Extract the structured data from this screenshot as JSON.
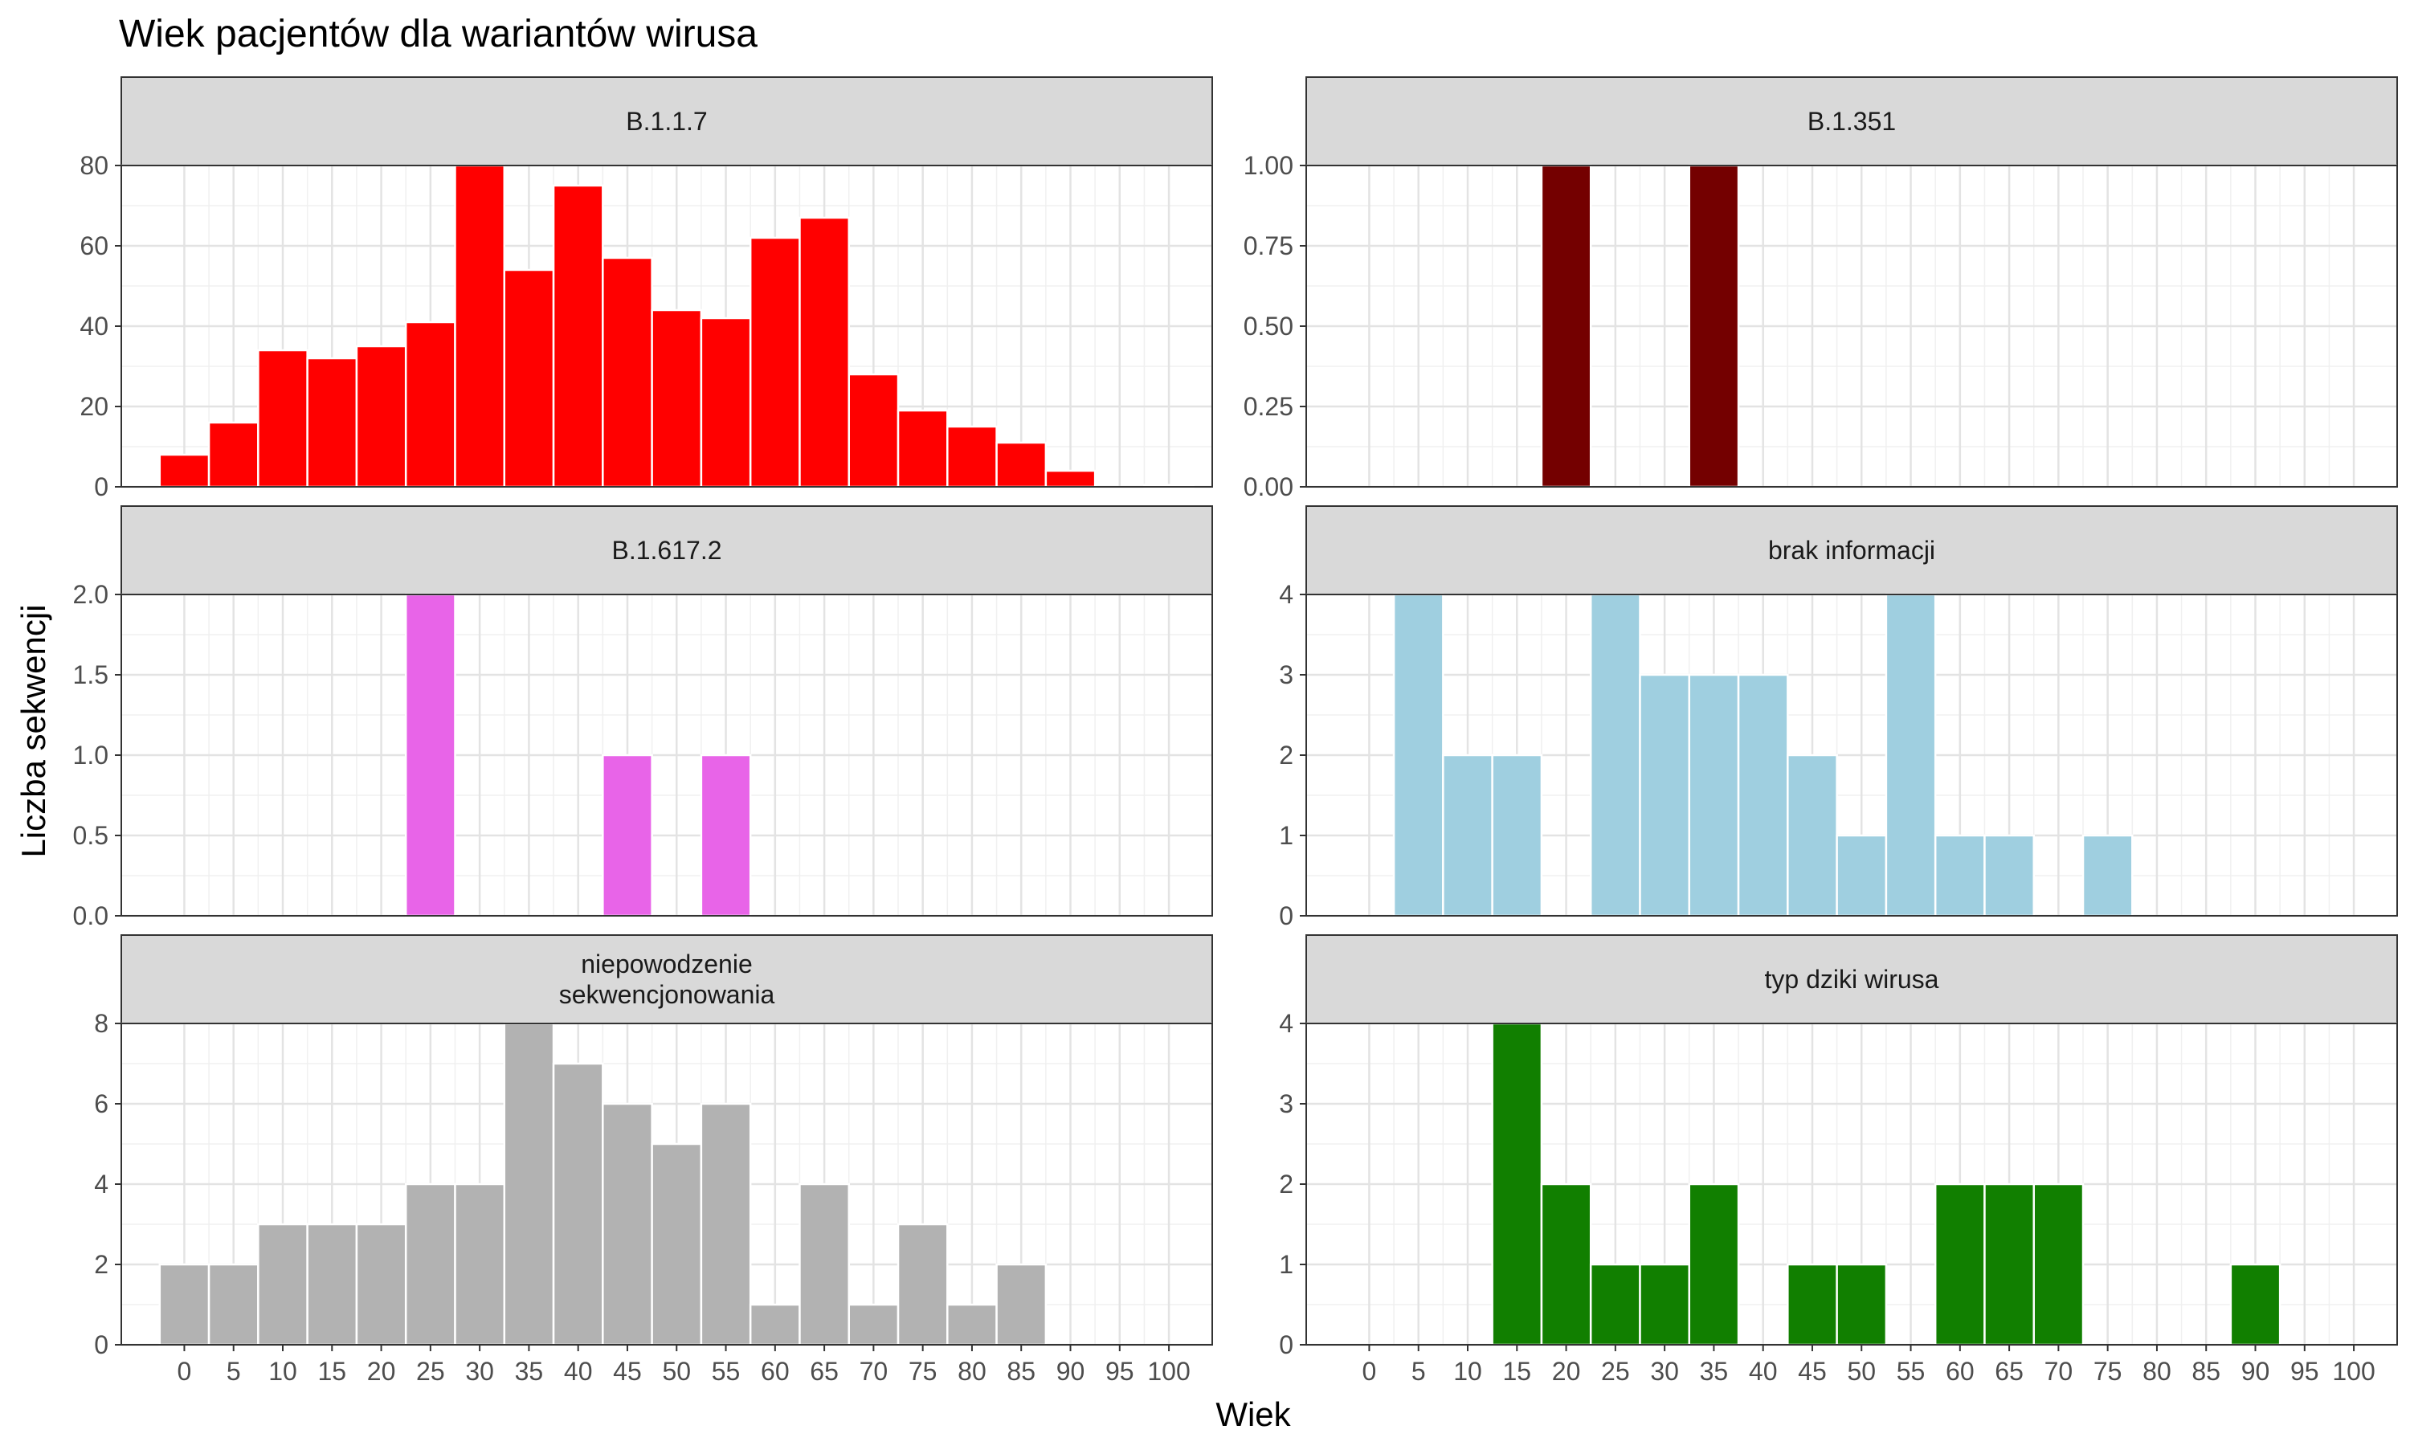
{
  "chart_data": {
    "type": "bar",
    "title": "Wiek pacjentów dla wariantów wirusa",
    "xlabel": "Wiek",
    "ylabel": "Liczba sekwencji",
    "x_ticks": [
      "0",
      "5",
      "10",
      "15",
      "20",
      "25",
      "30",
      "35",
      "40",
      "45",
      "50",
      "55",
      "60",
      "65",
      "70",
      "75",
      "80",
      "85",
      "90",
      "95",
      "100"
    ],
    "bin_width": 5,
    "grid": true,
    "legend": "none",
    "panels": [
      {
        "name": "B.1.1.7",
        "strip_lines": [
          "B.1.1.7"
        ],
        "color": "#ff0000",
        "ylim": [
          0,
          80
        ],
        "y_ticks": [
          "0",
          "20",
          "40",
          "60",
          "80"
        ],
        "bins": [
          {
            "x": 0,
            "value": 8
          },
          {
            "x": 5,
            "value": 16
          },
          {
            "x": 10,
            "value": 34
          },
          {
            "x": 15,
            "value": 32
          },
          {
            "x": 20,
            "value": 35
          },
          {
            "x": 25,
            "value": 41
          },
          {
            "x": 30,
            "value": 80
          },
          {
            "x": 35,
            "value": 54
          },
          {
            "x": 40,
            "value": 75
          },
          {
            "x": 45,
            "value": 57
          },
          {
            "x": 50,
            "value": 44
          },
          {
            "x": 55,
            "value": 42
          },
          {
            "x": 60,
            "value": 62
          },
          {
            "x": 65,
            "value": 67
          },
          {
            "x": 70,
            "value": 28
          },
          {
            "x": 75,
            "value": 19
          },
          {
            "x": 80,
            "value": 15
          },
          {
            "x": 85,
            "value": 11
          },
          {
            "x": 90,
            "value": 4
          },
          {
            "x": 95,
            "value": 0
          },
          {
            "x": 100,
            "value": 0.5
          }
        ]
      },
      {
        "name": "B.1.351",
        "strip_lines": [
          "B.1.351"
        ],
        "color": "#740000",
        "ylim": [
          0,
          1
        ],
        "y_ticks": [
          "0.00",
          "0.25",
          "0.50",
          "0.75",
          "1.00"
        ],
        "bins": [
          {
            "x": 20,
            "value": 1
          },
          {
            "x": 35,
            "value": 1
          }
        ]
      },
      {
        "name": "B.1.617.2",
        "strip_lines": [
          "B.1.617.2"
        ],
        "color": "#e864e8",
        "ylim": [
          0,
          2
        ],
        "y_ticks": [
          "0.0",
          "0.5",
          "1.0",
          "1.5",
          "2.0"
        ],
        "bins": [
          {
            "x": 25,
            "value": 2
          },
          {
            "x": 45,
            "value": 1
          },
          {
            "x": 55,
            "value": 1
          }
        ]
      },
      {
        "name": "brak informacji",
        "strip_lines": [
          "brak informacji"
        ],
        "color": "#9fcfe0",
        "ylim": [
          0,
          4
        ],
        "y_ticks": [
          "0",
          "1",
          "2",
          "3",
          "4"
        ],
        "bins": [
          {
            "x": 5,
            "value": 4
          },
          {
            "x": 10,
            "value": 2
          },
          {
            "x": 15,
            "value": 2
          },
          {
            "x": 25,
            "value": 4
          },
          {
            "x": 30,
            "value": 3
          },
          {
            "x": 35,
            "value": 3
          },
          {
            "x": 40,
            "value": 3
          },
          {
            "x": 45,
            "value": 2
          },
          {
            "x": 50,
            "value": 1
          },
          {
            "x": 55,
            "value": 4
          },
          {
            "x": 60,
            "value": 1
          },
          {
            "x": 65,
            "value": 1
          },
          {
            "x": 75,
            "value": 1
          }
        ]
      },
      {
        "name": "niepowodzenie sekwencjonowania",
        "strip_lines": [
          "niepowodzenie",
          "sekwencjonowania"
        ],
        "color": "#b2b2b2",
        "ylim": [
          0,
          8
        ],
        "y_ticks": [
          "0",
          "2",
          "4",
          "6",
          "8"
        ],
        "bins": [
          {
            "x": 0,
            "value": 2
          },
          {
            "x": 5,
            "value": 2
          },
          {
            "x": 10,
            "value": 3
          },
          {
            "x": 15,
            "value": 3
          },
          {
            "x": 20,
            "value": 3
          },
          {
            "x": 25,
            "value": 4
          },
          {
            "x": 30,
            "value": 4
          },
          {
            "x": 35,
            "value": 8
          },
          {
            "x": 40,
            "value": 7
          },
          {
            "x": 45,
            "value": 6
          },
          {
            "x": 50,
            "value": 5
          },
          {
            "x": 55,
            "value": 6
          },
          {
            "x": 60,
            "value": 1
          },
          {
            "x": 65,
            "value": 4
          },
          {
            "x": 70,
            "value": 1
          },
          {
            "x": 75,
            "value": 3
          },
          {
            "x": 80,
            "value": 1
          },
          {
            "x": 85,
            "value": 2
          }
        ]
      },
      {
        "name": "typ dziki wirusa",
        "strip_lines": [
          "typ dziki wirusa"
        ],
        "color": "#117f00",
        "ylim": [
          0,
          4
        ],
        "y_ticks": [
          "0",
          "1",
          "2",
          "3",
          "4"
        ],
        "bins": [
          {
            "x": 15,
            "value": 4
          },
          {
            "x": 20,
            "value": 2
          },
          {
            "x": 25,
            "value": 1
          },
          {
            "x": 30,
            "value": 1
          },
          {
            "x": 35,
            "value": 2
          },
          {
            "x": 45,
            "value": 1
          },
          {
            "x": 50,
            "value": 1
          },
          {
            "x": 60,
            "value": 2
          },
          {
            "x": 65,
            "value": 2
          },
          {
            "x": 70,
            "value": 2
          },
          {
            "x": 90,
            "value": 1
          }
        ]
      }
    ]
  }
}
